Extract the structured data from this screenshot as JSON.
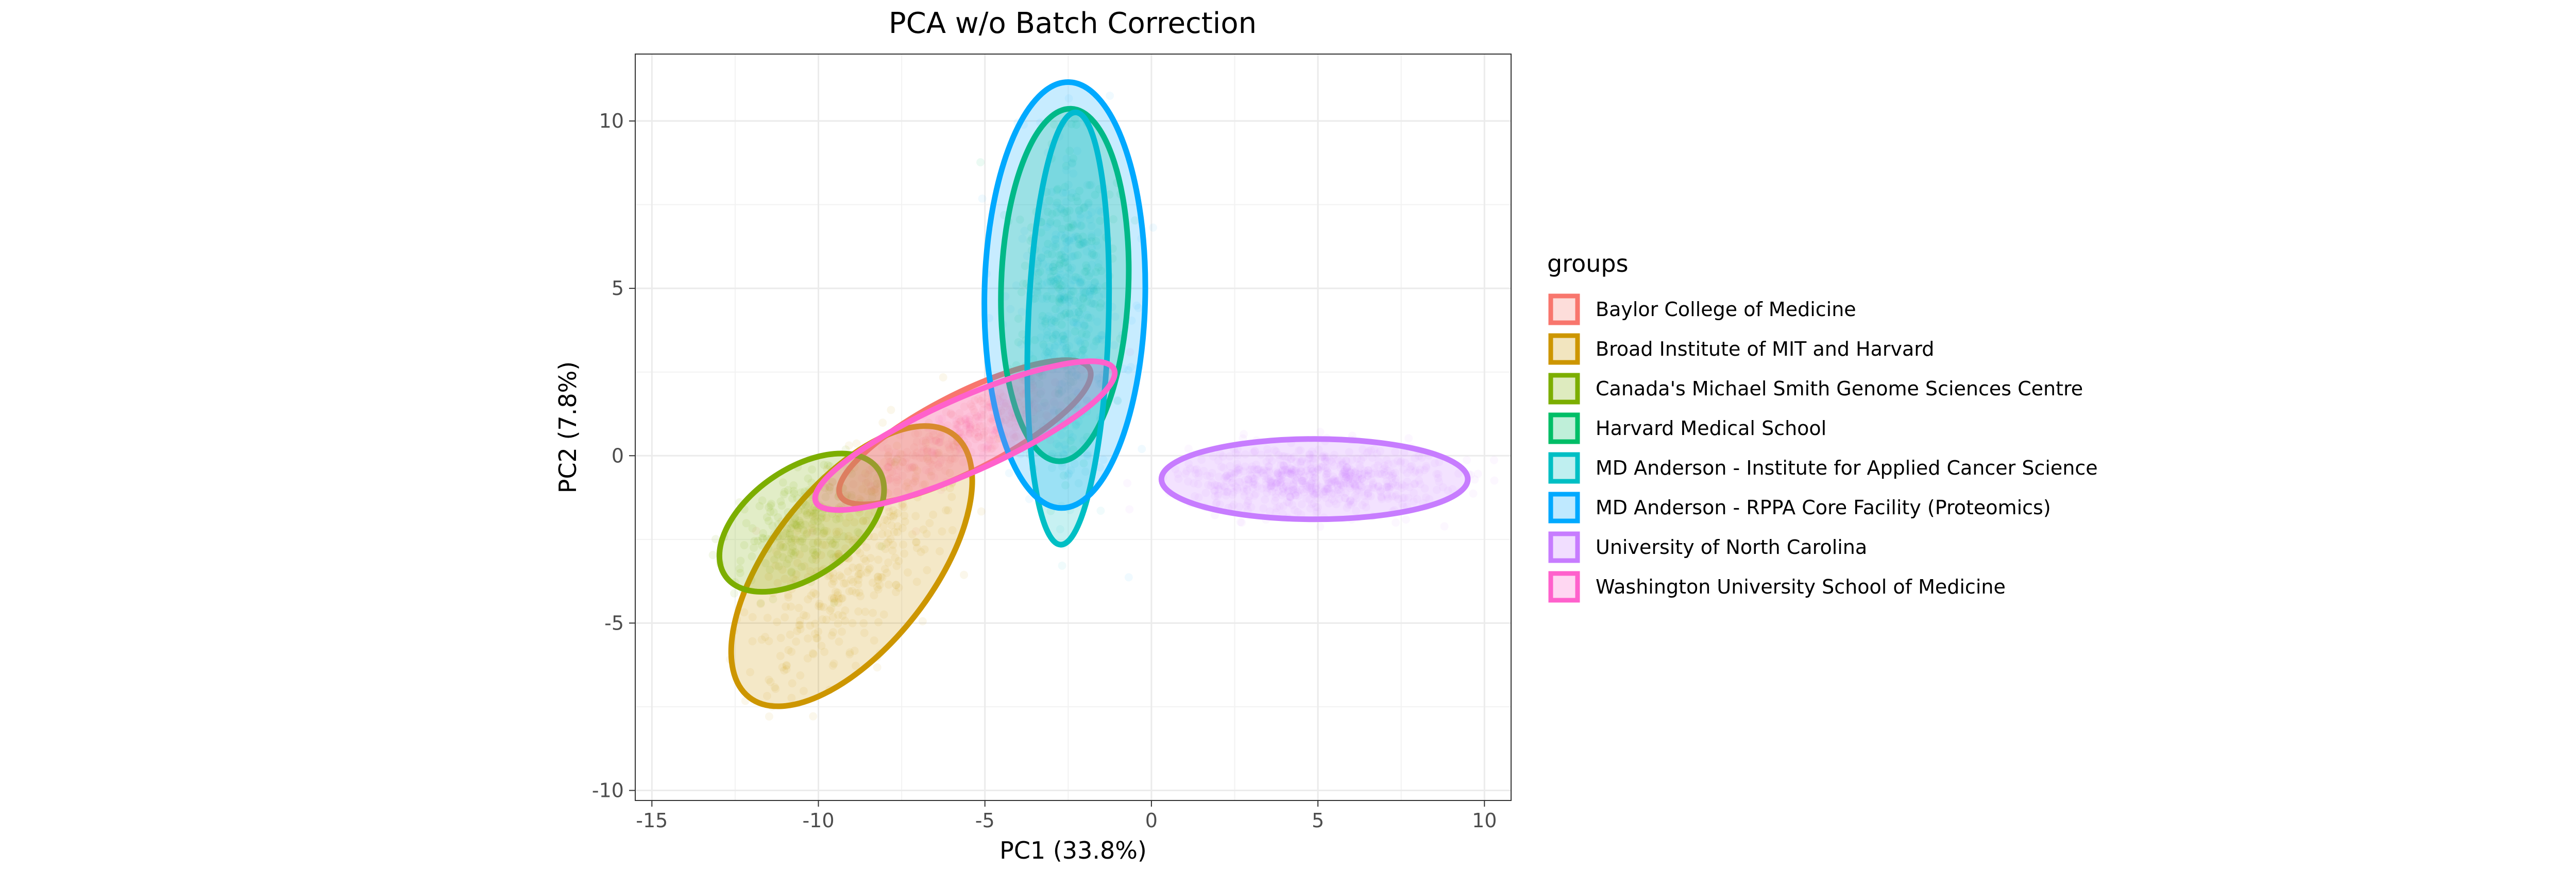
{
  "chart_data": {
    "type": "scatter",
    "title": "PCA w/o Batch Correction",
    "xlabel": "PC1 (33.8%)",
    "ylabel": "PC2 (7.8%)",
    "xlim": [
      -15.5,
      10.8
    ],
    "ylim": [
      -10.3,
      12.0
    ],
    "xticks": [
      -15,
      -10,
      -5,
      0,
      5,
      10
    ],
    "xtick_labels": [
      "-15",
      "-10",
      "-5",
      "0",
      "5",
      "10"
    ],
    "yticks": [
      -10,
      -5,
      0,
      5,
      10
    ],
    "ytick_labels": [
      "-10",
      "-5",
      "0",
      "5",
      "10"
    ],
    "grid": true,
    "legend_title": "groups",
    "legend_position": "right",
    "series": [
      {
        "name": "Baylor College of Medicine",
        "color": "#F8766D",
        "ellipse": {
          "cx": -5.6,
          "cy": 0.7,
          "a": 4.2,
          "b": 1.15,
          "angle_deg": 27
        }
      },
      {
        "name": "Broad Institute of MIT and Harvard",
        "color": "#CD9600",
        "ellipse": {
          "cx": -9.0,
          "cy": -3.3,
          "a": 5.0,
          "b": 2.4,
          "angle_deg": 52
        }
      },
      {
        "name": "Canada's Michael Smith Genome Sciences Centre",
        "color": "#7CAE00",
        "ellipse": {
          "cx": -10.5,
          "cy": -2.0,
          "a": 2.8,
          "b": 1.6,
          "angle_deg": 35
        }
      },
      {
        "name": "Harvard Medical School",
        "color": "#00BE67",
        "ellipse": {
          "cx": -2.6,
          "cy": 5.1,
          "a": 5.3,
          "b": 1.9,
          "angle_deg": 88
        }
      },
      {
        "name": "MD Anderson - Institute for Applied Cancer Science",
        "color": "#00BFC4",
        "ellipse": {
          "cx": -2.5,
          "cy": 3.8,
          "a": 6.5,
          "b": 1.2,
          "angle_deg": 88
        }
      },
      {
        "name": "MD Anderson - RPPA Core Facility (Proteomics)",
        "color": "#00A9FF",
        "ellipse": {
          "cx": -2.6,
          "cy": 4.8,
          "a": 6.4,
          "b": 2.4,
          "angle_deg": 89
        }
      },
      {
        "name": "University of North Carolina",
        "color": "#C77CFF",
        "ellipse": {
          "cx": 4.9,
          "cy": -0.7,
          "a": 4.6,
          "b": 1.2,
          "angle_deg": 0
        }
      },
      {
        "name": "Washington University School of Medicine",
        "color": "#FF61CC",
        "ellipse": {
          "cx": -5.6,
          "cy": 0.6,
          "a": 4.9,
          "b": 1.1,
          "angle_deg": 24
        }
      }
    ]
  }
}
